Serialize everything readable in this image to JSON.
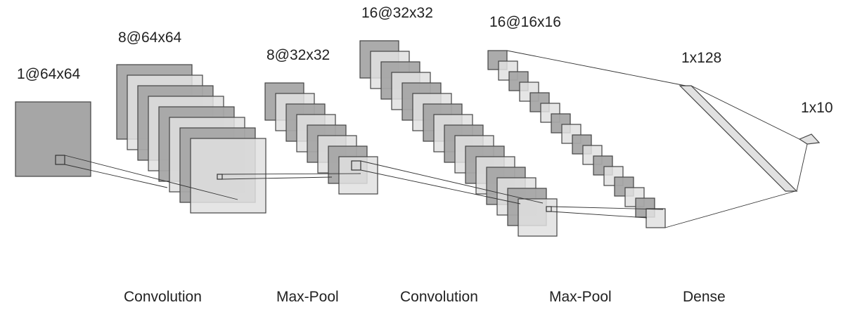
{
  "diagram": {
    "colors": {
      "dark_fill": "#a6a6a6",
      "light_fill": "#e1e1e1",
      "stroke": "#444444",
      "line": "#333333"
    },
    "layers": [
      {
        "label": "1@64x64"
      },
      {
        "label": "8@64x64"
      },
      {
        "label": "8@32x32"
      },
      {
        "label": "16@32x32"
      },
      {
        "label": "16@16x16"
      },
      {
        "label": "1x128"
      },
      {
        "label": "1x10"
      }
    ],
    "operations": [
      {
        "label": "Convolution"
      },
      {
        "label": "Max-Pool"
      },
      {
        "label": "Convolution"
      },
      {
        "label": "Max-Pool"
      },
      {
        "label": "Dense"
      }
    ]
  }
}
